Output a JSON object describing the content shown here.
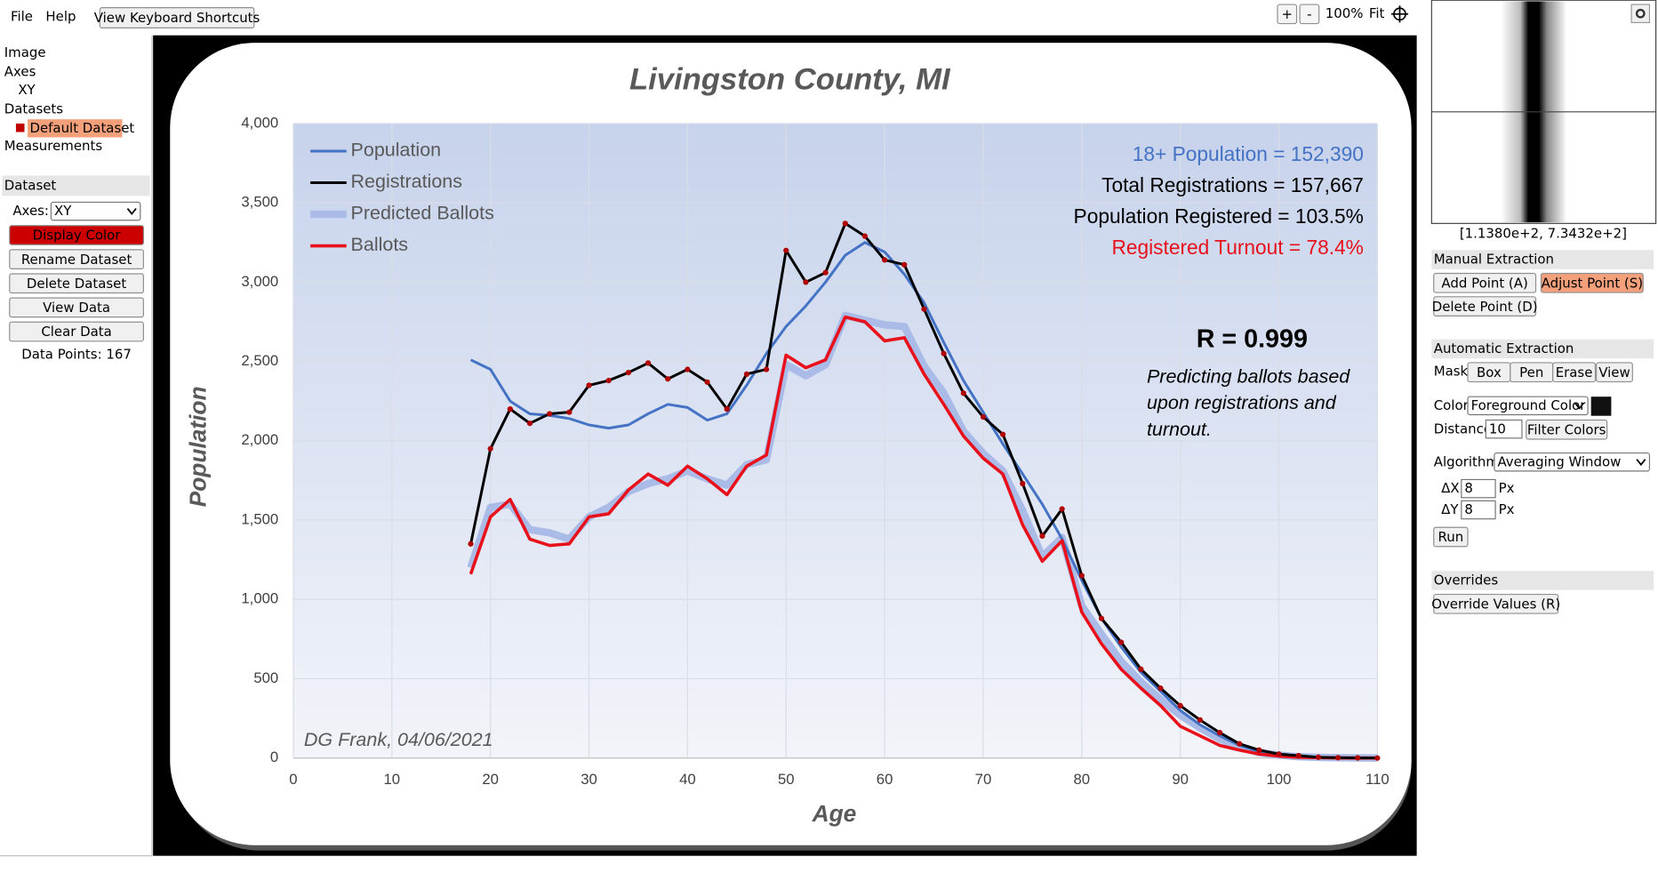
{
  "menu": {
    "items": [
      "File",
      "Help"
    ],
    "shortcuts_button": "View Keyboard Shortcuts"
  },
  "zoom": {
    "plus": "+",
    "minus": "-",
    "level": "100%",
    "fit": "Fit"
  },
  "tree": {
    "image": "Image",
    "axes": "Axes",
    "xy": "XY",
    "datasets": "Datasets",
    "default_dataset": "Default Dataset",
    "measurements": "Measurements"
  },
  "dataset_panel": {
    "title": "Dataset",
    "axes_label": "Axes:",
    "axes_value": "XY",
    "buttons": [
      "Display Color",
      "Rename Dataset",
      "Delete Dataset",
      "View Data",
      "Clear Data"
    ],
    "data_points": "Data Points: 167"
  },
  "cursor_readout": "[1.1380e+2, 7.3432e+2]",
  "manual_extraction": {
    "title": "Manual Extraction",
    "buttons": [
      "Add Point (A)",
      "Adjust Point (S)",
      "Delete Point (D)"
    ]
  },
  "automatic_extraction": {
    "title": "Automatic Extraction",
    "mask_label": "Mask",
    "mask_buttons": [
      "Box",
      "Pen",
      "Erase",
      "View"
    ],
    "color_label": "Color",
    "color_value": "Foreground Color",
    "distance_label": "Distance",
    "distance_value": "10",
    "filter_button": "Filter Colors",
    "algorithm_label": "Algorithm",
    "algorithm_value": "Averaging Window",
    "dx_label": "ΔX",
    "dx_value": "8",
    "dy_label": "ΔY",
    "dy_value": "8",
    "px_unit": "Px",
    "run": "Run"
  },
  "overrides": {
    "title": "Overrides",
    "button": "Override Values (R)"
  },
  "chart_data": {
    "type": "line",
    "title": "Livingston County, MI",
    "xlabel": "Age",
    "ylabel": "Population",
    "x": [
      18,
      20,
      22,
      24,
      26,
      28,
      30,
      32,
      34,
      36,
      38,
      40,
      42,
      44,
      46,
      48,
      50,
      52,
      54,
      56,
      58,
      60,
      62,
      64,
      66,
      68,
      70,
      72,
      74,
      76,
      78,
      80,
      82,
      84,
      86,
      88,
      90,
      92,
      94,
      96,
      98,
      100,
      102,
      104,
      106,
      108,
      110
    ],
    "series": [
      {
        "name": "Population",
        "color": "#4472c4",
        "values": [
          2510,
          2450,
          2250,
          2170,
          2160,
          2140,
          2100,
          2080,
          2100,
          2170,
          2230,
          2210,
          2130,
          2170,
          2350,
          2550,
          2720,
          2850,
          3000,
          3170,
          3250,
          3190,
          3050,
          2870,
          2620,
          2380,
          2180,
          1980,
          1790,
          1600,
          1380,
          1120,
          880,
          700,
          540,
          420,
          300,
          210,
          140,
          80,
          40,
          20,
          10,
          5,
          2,
          1,
          0
        ]
      },
      {
        "name": "Registrations",
        "color": "#000000",
        "values": [
          1350,
          1950,
          2200,
          2110,
          2170,
          2180,
          2350,
          2380,
          2430,
          2490,
          2390,
          2450,
          2370,
          2200,
          2420,
          2450,
          3200,
          3000,
          3060,
          3370,
          3290,
          3140,
          3110,
          2830,
          2550,
          2300,
          2150,
          2040,
          1730,
          1400,
          1570,
          1150,
          880,
          730,
          560,
          440,
          330,
          240,
          160,
          90,
          50,
          25,
          15,
          5,
          2,
          1,
          0
        ]
      },
      {
        "name": "Predicted Ballots",
        "color": "#a9bbe6",
        "values": [
          1200,
          1580,
          1600,
          1440,
          1420,
          1380,
          1520,
          1580,
          1680,
          1730,
          1760,
          1810,
          1760,
          1720,
          1850,
          1880,
          2480,
          2410,
          2480,
          2790,
          2760,
          2730,
          2720,
          2470,
          2300,
          2060,
          1920,
          1810,
          1560,
          1270,
          1390,
          960,
          780,
          610,
          480,
          370,
          270,
          190,
          120,
          70,
          35,
          18,
          8,
          4,
          2,
          1,
          0
        ]
      },
      {
        "name": "Ballots",
        "color": "#e8101a",
        "values": [
          1160,
          1520,
          1630,
          1380,
          1340,
          1350,
          1520,
          1540,
          1690,
          1790,
          1720,
          1840,
          1760,
          1660,
          1840,
          1910,
          2540,
          2460,
          2510,
          2780,
          2750,
          2630,
          2650,
          2420,
          2230,
          2030,
          1890,
          1790,
          1470,
          1240,
          1370,
          920,
          720,
          560,
          440,
          330,
          200,
          140,
          80,
          50,
          25,
          12,
          5,
          3,
          1,
          0,
          0
        ]
      }
    ],
    "xlim": [
      0,
      110
    ],
    "ylim": [
      0,
      4000
    ],
    "xticks": [
      0,
      10,
      20,
      30,
      40,
      50,
      60,
      70,
      80,
      90,
      100,
      110
    ],
    "yticks": [
      0,
      500,
      {
        "value": 1000,
        "label": "1,000"
      },
      {
        "value": 1500,
        "label": "1,500"
      },
      {
        "value": 2000,
        "label": "2,000"
      },
      {
        "value": 2500,
        "label": "2,500"
      },
      {
        "value": 3000,
        "label": "3,000"
      },
      {
        "value": 3500,
        "label": "3,500"
      },
      {
        "value": 4000,
        "label": "4,000"
      }
    ],
    "grid": true,
    "legend": "upper left",
    "digitized_color": "#b00000",
    "annotations": [
      {
        "text": "18+ Population = 152,390",
        "color": "#4472c4"
      },
      {
        "text": "Total Registrations = 157,667",
        "color": "#000000"
      },
      {
        "text": "Population Registered = 103.5%",
        "color": "#000000"
      },
      {
        "text": "Registered Turnout = 78.4%",
        "color": "#e8101a"
      }
    ],
    "r_value": "R = 0.999",
    "note_lines": [
      "Predicting ballots based",
      "upon registrations and",
      "turnout."
    ],
    "credit": "DG Frank, 04/06/2021"
  }
}
